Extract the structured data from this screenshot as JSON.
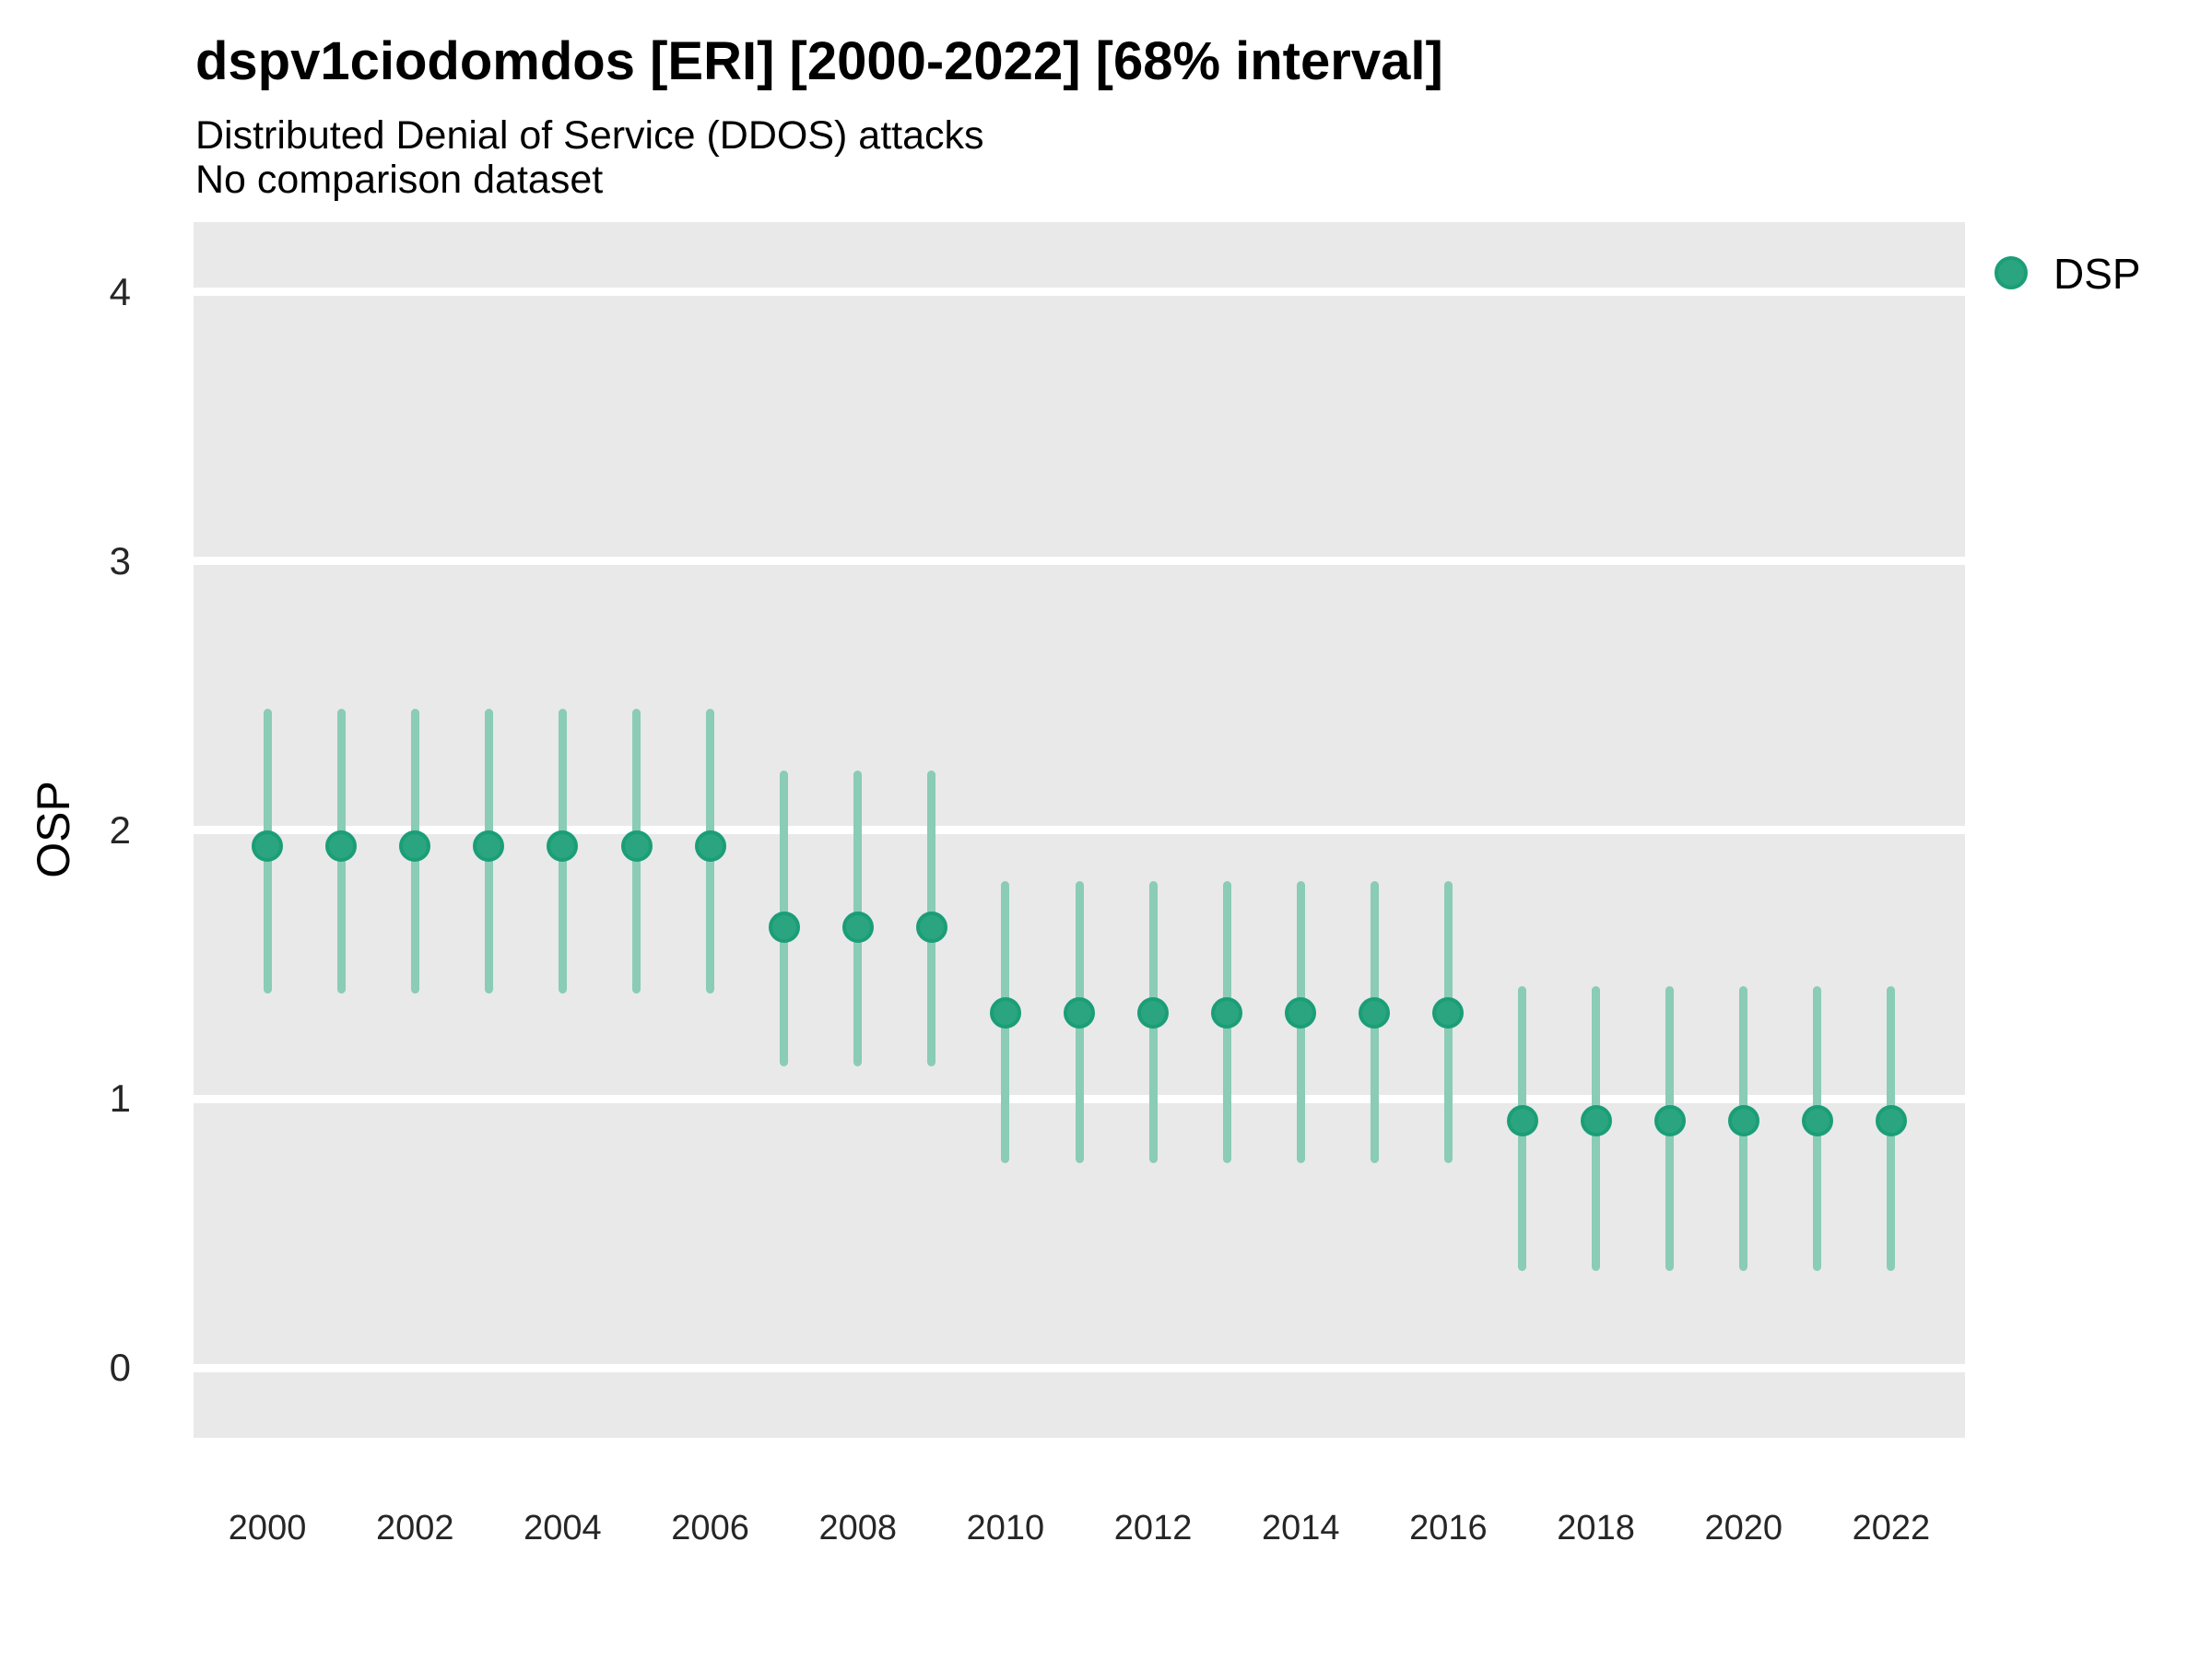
{
  "chart_data": {
    "type": "scatter",
    "title": "dspv1ciodomdos [ERI] [2000-2022] [68% interval]",
    "subtitle": "Distributed Denial of Service (DDOS) attacks",
    "comparison_note": "No comparison dataset",
    "ylabel": "OSP",
    "xlabel": "",
    "interval": "68%",
    "legend": {
      "label": "DSP",
      "position": "right-top"
    },
    "x": [
      2000,
      2001,
      2002,
      2003,
      2004,
      2005,
      2006,
      2007,
      2008,
      2009,
      2010,
      2011,
      2012,
      2013,
      2014,
      2015,
      2016,
      2017,
      2018,
      2019,
      2020,
      2021,
      2022
    ],
    "series": [
      {
        "name": "DSP",
        "values": [
          1.94,
          1.94,
          1.94,
          1.94,
          1.94,
          1.94,
          1.94,
          1.64,
          1.64,
          1.64,
          1.32,
          1.32,
          1.32,
          1.32,
          1.32,
          1.32,
          1.32,
          0.92,
          0.92,
          0.92,
          0.92,
          0.92,
          0.92
        ],
        "lower_68": [
          1.39,
          1.39,
          1.39,
          1.39,
          1.39,
          1.39,
          1.39,
          1.12,
          1.12,
          1.12,
          0.76,
          0.76,
          0.76,
          0.76,
          0.76,
          0.76,
          0.76,
          0.36,
          0.36,
          0.36,
          0.36,
          0.36,
          0.36
        ],
        "upper_68": [
          2.45,
          2.45,
          2.45,
          2.45,
          2.45,
          2.45,
          2.45,
          2.22,
          2.22,
          2.22,
          1.81,
          1.81,
          1.81,
          1.81,
          1.81,
          1.81,
          1.81,
          1.42,
          1.42,
          1.42,
          1.42,
          1.42,
          1.42
        ]
      }
    ],
    "xticks": [
      2000,
      2002,
      2004,
      2006,
      2008,
      2010,
      2012,
      2014,
      2016,
      2018,
      2020,
      2022
    ],
    "yticks": [
      0,
      1,
      2,
      3,
      4
    ],
    "xlim": [
      1999,
      2023
    ],
    "ylim": [
      -0.26,
      4.26
    ],
    "grid": "horizontal",
    "legend_position": "right-top",
    "colors": {
      "point_fill": "#2aa57f",
      "point_stroke": "#1b9e77",
      "interval_bar": "#8accb5",
      "plot_background": "#e9e9e9",
      "gridline": "#ffffff",
      "text": "#000000"
    }
  }
}
